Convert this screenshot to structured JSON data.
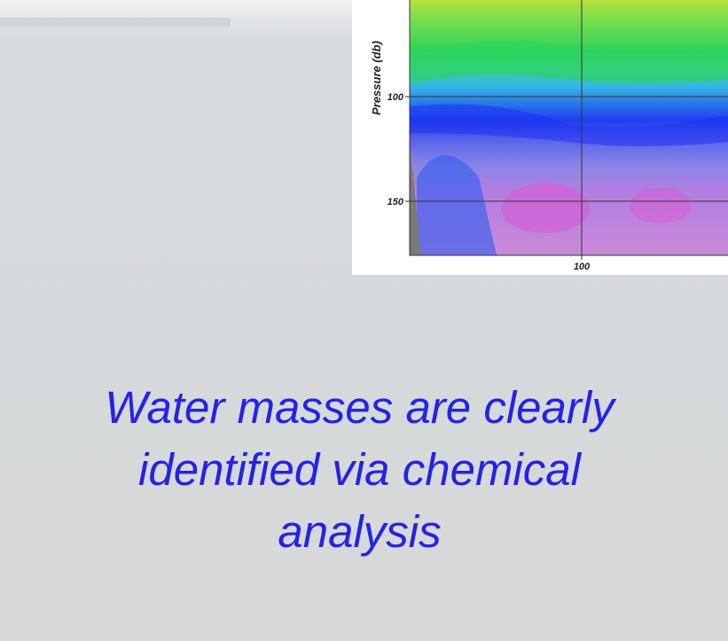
{
  "figure": {
    "y_label": "Pressure (db)",
    "y_ticks": [
      100,
      150
    ],
    "x_ticks": [
      100
    ]
  },
  "caption": {
    "lines": [
      "Water masses are clearly",
      "identified via chemical",
      "analysis"
    ]
  }
}
